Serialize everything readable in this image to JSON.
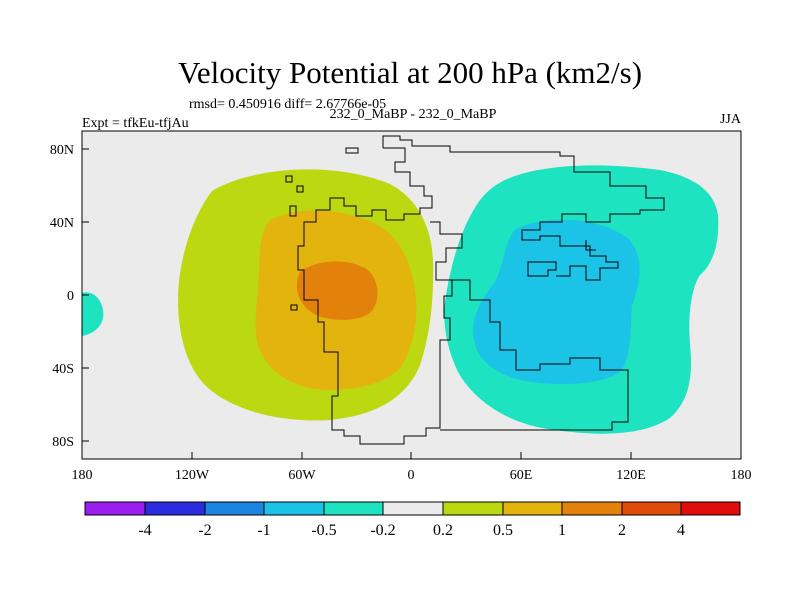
{
  "figure": {
    "title": "Velocity Potential at 200 hPa (km2/s)",
    "stats_line": "rmsd= 0.450916 diff= 2.67766e-05",
    "left_label": "Expt = tfkEu-tfjAu",
    "center_label": "232_0_MaBP - 232_0_MaBP",
    "right_label": "JJA"
  },
  "axes": {
    "lon_ticks": [
      "180",
      "120W",
      "60W",
      "0",
      "60E",
      "120E",
      "180"
    ],
    "lat_ticks": [
      "80N",
      "40N",
      "0",
      "40S",
      "80S"
    ]
  },
  "colorbar": {
    "labels": [
      "-4",
      "-2",
      "-1",
      "-0.5",
      "-0.2",
      "0.2",
      "0.5",
      "1",
      "2",
      "4"
    ],
    "colors": [
      "#9a1fee",
      "#2b2be0",
      "#1b83e0",
      "#1bc3e6",
      "#1de3c0",
      "#ebebeb",
      "#bcd811",
      "#e4b40e",
      "#e2820b",
      "#e04a0a",
      "#df0d0d"
    ]
  },
  "field_colors": {
    "background": "#ebebeb",
    "pos_0_2": "#bcd811",
    "pos_0_5": "#e4b40e",
    "pos_1": "#e2820b",
    "neg_0_2": "#1de3c0",
    "neg_0_5": "#1bc3e6"
  }
}
